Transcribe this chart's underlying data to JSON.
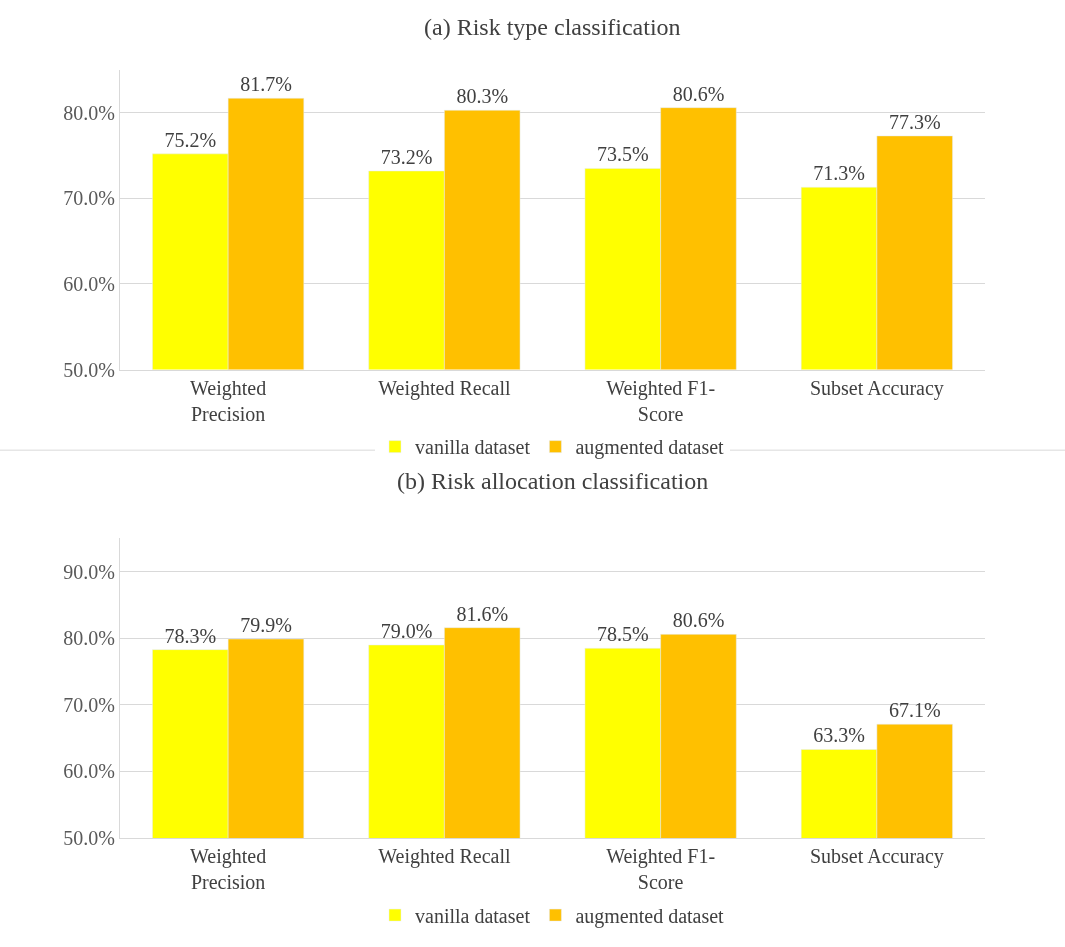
{
  "chart_data": [
    {
      "type": "bar",
      "title": "(a) Risk type classification",
      "categories": [
        "Weighted Precision",
        "Weighted Recall",
        "Weighted F1-Score",
        "Subset Accuracy"
      ],
      "series": [
        {
          "name": "vanilla dataset",
          "color": "#ffff00",
          "values": [
            75.2,
            73.2,
            73.5,
            71.3
          ],
          "value_labels": [
            "75.2%",
            "73.2%",
            "73.5%",
            "71.3%"
          ]
        },
        {
          "name": "augmented dataset",
          "color": "#ffc000",
          "values": [
            81.7,
            80.3,
            80.6,
            77.3
          ],
          "value_labels": [
            "81.7%",
            "80.3%",
            "80.6%",
            "77.3%"
          ]
        }
      ],
      "ylim": [
        50,
        85
      ],
      "yticks": [
        {
          "value": 50,
          "label": "50.0%"
        },
        {
          "value": 60,
          "label": "60.0%"
        },
        {
          "value": 70,
          "label": "70.0%"
        },
        {
          "value": 80,
          "label": "80.0%"
        }
      ],
      "grid": "y",
      "legend": "bottom"
    },
    {
      "type": "bar",
      "title": "(b) Risk allocation classification",
      "categories": [
        "Weighted Precision",
        "Weighted Recall",
        "Weighted F1-Score",
        "Subset Accuracy"
      ],
      "series": [
        {
          "name": "vanilla dataset",
          "color": "#ffff00",
          "values": [
            78.3,
            79.0,
            78.5,
            63.3
          ],
          "value_labels": [
            "78.3%",
            "79.0%",
            "78.5%",
            "63.3%"
          ]
        },
        {
          "name": "augmented dataset",
          "color": "#ffc000",
          "values": [
            79.9,
            81.6,
            80.6,
            67.1
          ],
          "value_labels": [
            "79.9%",
            "81.6%",
            "80.6%",
            "67.1%"
          ]
        }
      ],
      "ylim": [
        50,
        95
      ],
      "yticks": [
        {
          "value": 50,
          "label": "50.0%"
        },
        {
          "value": 60,
          "label": "60.0%"
        },
        {
          "value": 70,
          "label": "70.0%"
        },
        {
          "value": 80,
          "label": "80.0%"
        },
        {
          "value": 90,
          "label": "90.0%"
        }
      ],
      "grid": "y",
      "legend": "bottom"
    }
  ]
}
